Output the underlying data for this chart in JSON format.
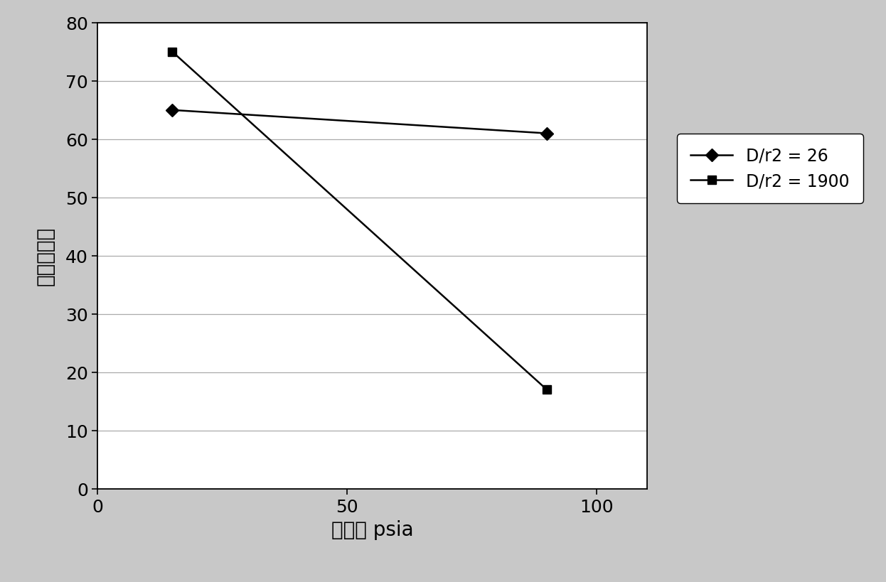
{
  "series": [
    {
      "label": "D/r2 = 26",
      "x": [
        15,
        90
      ],
      "y": [
        65,
        61
      ],
      "color": "#000000",
      "marker": "D",
      "markersize": 9,
      "linewidth": 1.8
    },
    {
      "label": "D/r2 = 1900",
      "x": [
        15,
        90
      ],
      "y": [
        75,
        17
      ],
      "color": "#000000",
      "marker": "s",
      "markersize": 9,
      "linewidth": 1.8
    }
  ],
  "xlabel": "压力， psia",
  "ylabel": "烯烃选择性",
  "xlim": [
    0,
    110
  ],
  "ylim": [
    0,
    80
  ],
  "xticks": [
    0,
    50,
    100
  ],
  "yticks": [
    0,
    10,
    20,
    30,
    40,
    50,
    60,
    70,
    80
  ],
  "xlabel_fontsize": 20,
  "ylabel_fontsize": 20,
  "tick_fontsize": 18,
  "legend_fontsize": 17,
  "background_color": "#c8c8c8",
  "plot_background_color": "#ffffff",
  "legend_loc": "center right"
}
